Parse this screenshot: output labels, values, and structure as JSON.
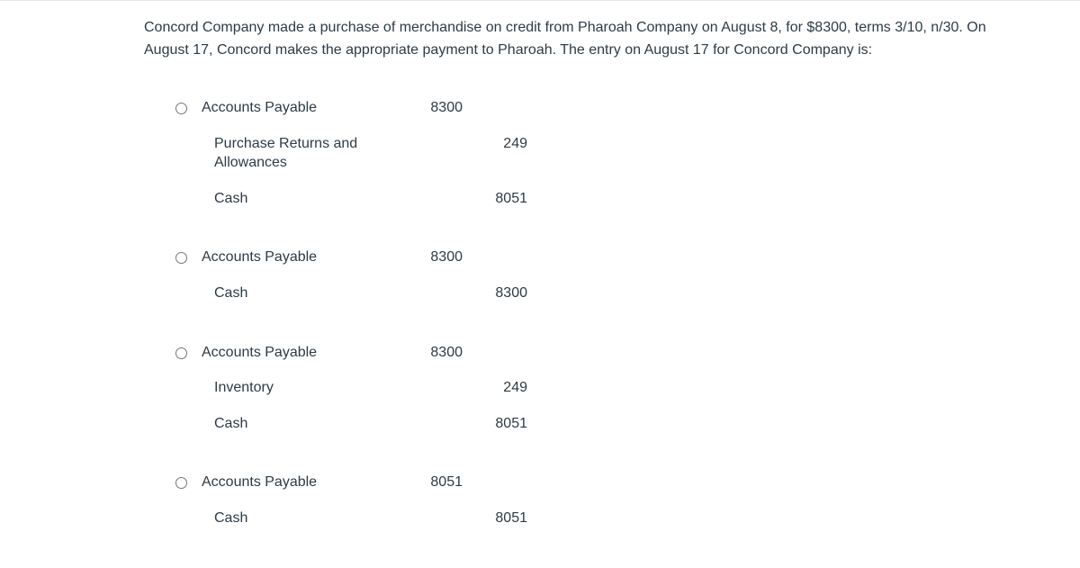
{
  "question": "Concord Company made a purchase of merchandise on credit from Pharoah Company on August 8, for $8300, terms 3/10, n/30. On August 17, Concord makes the appropriate payment to Pharoah. The entry on August 17 for Concord Company is:",
  "options": [
    {
      "lines": [
        {
          "account": "Accounts Payable",
          "debit": "8300",
          "credit": "",
          "indent": false
        },
        {
          "account": "Purchase Returns and Allowances",
          "debit": "",
          "credit": "249",
          "indent": true
        },
        {
          "account": "Cash",
          "debit": "",
          "credit": "8051",
          "indent": true
        }
      ]
    },
    {
      "lines": [
        {
          "account": "Accounts Payable",
          "debit": "8300",
          "credit": "",
          "indent": false
        },
        {
          "account": "Cash",
          "debit": "",
          "credit": "8300",
          "indent": true
        }
      ]
    },
    {
      "lines": [
        {
          "account": "Accounts Payable",
          "debit": "8300",
          "credit": "",
          "indent": false
        },
        {
          "account": "Inventory",
          "debit": "",
          "credit": "249",
          "indent": true
        },
        {
          "account": "Cash",
          "debit": "",
          "credit": "8051",
          "indent": true
        }
      ]
    },
    {
      "lines": [
        {
          "account": "Accounts Payable",
          "debit": "8051",
          "credit": "",
          "indent": false
        },
        {
          "account": "Cash",
          "debit": "",
          "credit": "8051",
          "indent": true
        }
      ]
    }
  ],
  "colors": {
    "text": "#2d3b45",
    "border": "#e8e8e8",
    "background": "#ffffff"
  },
  "typography": {
    "font_family": "Segoe UI, Helvetica Neue, Arial, sans-serif",
    "body_fontsize": 16
  }
}
